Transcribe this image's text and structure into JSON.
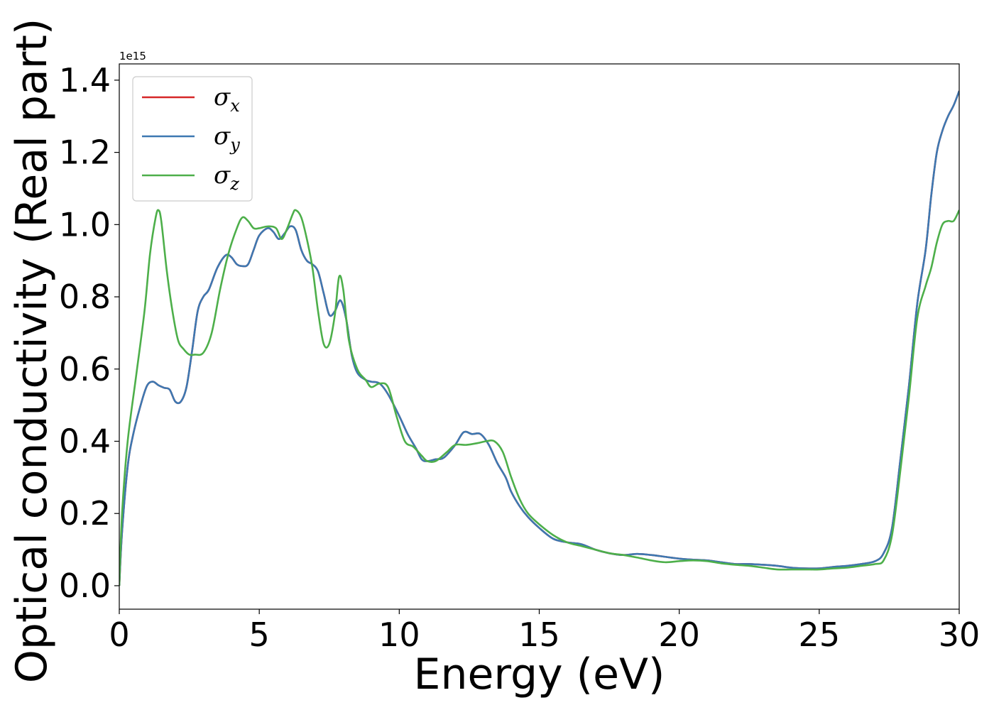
{
  "chart_data": {
    "type": "line",
    "xlabel": "Energy (eV)",
    "ylabel": "Optical conductivity (Real part)",
    "y_offset_label": "1e15",
    "xlim": [
      0,
      30
    ],
    "ylim": [
      -0.065,
      1.445
    ],
    "x_ticks": [
      0,
      5,
      10,
      15,
      20,
      25,
      30
    ],
    "x_tick_labels": [
      "0",
      "5",
      "10",
      "15",
      "20",
      "25",
      "30"
    ],
    "y_ticks": [
      0.0,
      0.2,
      0.4,
      0.6,
      0.8,
      1.0,
      1.2,
      1.4
    ],
    "y_tick_labels": [
      "0.0",
      "0.2",
      "0.4",
      "0.6",
      "0.8",
      "1.0",
      "1.2",
      "1.4"
    ],
    "grid": false,
    "legend": "upper-left",
    "series": [
      {
        "name": "σ",
        "subscript": "x",
        "color": "#d62728",
        "x": [
          0,
          0.1,
          0.3,
          0.5,
          0.8,
          1.0,
          1.2,
          1.4,
          1.6,
          1.8,
          2.0,
          2.2,
          2.4,
          2.6,
          2.8,
          3.0,
          3.2,
          3.5,
          3.8,
          4.0,
          4.2,
          4.4,
          4.6,
          4.8,
          5.0,
          5.3,
          5.5,
          5.7,
          5.9,
          6.1,
          6.3,
          6.5,
          6.7,
          6.9,
          7.1,
          7.3,
          7.5,
          7.7,
          7.9,
          8.1,
          8.3,
          8.5,
          8.8,
          9.0,
          9.3,
          9.6,
          10.0,
          10.3,
          10.6,
          10.8,
          11.0,
          11.3,
          11.6,
          12.0,
          12.3,
          12.6,
          12.9,
          13.2,
          13.5,
          13.8,
          14.0,
          14.3,
          14.6,
          15.0,
          15.5,
          16.0,
          16.5,
          17.0,
          17.5,
          18.0,
          18.5,
          19.0,
          19.5,
          20.0,
          20.5,
          21.0,
          21.5,
          22.0,
          22.5,
          23.0,
          23.5,
          24.0,
          24.5,
          25.0,
          25.5,
          26.0,
          26.5,
          27.0,
          27.3,
          27.6,
          27.9,
          28.2,
          28.5,
          28.8,
          29.0,
          29.2,
          29.4,
          29.6,
          29.8,
          30.0
        ],
        "y": [
          0.0,
          0.15,
          0.33,
          0.42,
          0.51,
          0.555,
          0.565,
          0.555,
          0.548,
          0.543,
          0.51,
          0.51,
          0.55,
          0.65,
          0.76,
          0.8,
          0.82,
          0.88,
          0.915,
          0.91,
          0.89,
          0.885,
          0.89,
          0.93,
          0.97,
          0.99,
          0.98,
          0.96,
          0.975,
          0.995,
          0.985,
          0.93,
          0.9,
          0.89,
          0.87,
          0.81,
          0.75,
          0.76,
          0.79,
          0.74,
          0.64,
          0.59,
          0.57,
          0.565,
          0.56,
          0.53,
          0.47,
          0.42,
          0.38,
          0.35,
          0.345,
          0.35,
          0.355,
          0.39,
          0.425,
          0.42,
          0.42,
          0.39,
          0.34,
          0.3,
          0.26,
          0.22,
          0.19,
          0.16,
          0.13,
          0.12,
          0.115,
          0.1,
          0.09,
          0.085,
          0.088,
          0.085,
          0.08,
          0.075,
          0.072,
          0.07,
          0.065,
          0.06,
          0.06,
          0.058,
          0.055,
          0.05,
          0.048,
          0.048,
          0.052,
          0.055,
          0.06,
          0.068,
          0.09,
          0.16,
          0.35,
          0.55,
          0.78,
          0.93,
          1.08,
          1.2,
          1.26,
          1.3,
          1.33,
          1.37
        ]
      },
      {
        "name": "σ",
        "subscript": "y",
        "color": "#3d78b1",
        "x": [
          0,
          0.1,
          0.3,
          0.5,
          0.8,
          1.0,
          1.2,
          1.4,
          1.6,
          1.8,
          2.0,
          2.2,
          2.4,
          2.6,
          2.8,
          3.0,
          3.2,
          3.5,
          3.8,
          4.0,
          4.2,
          4.4,
          4.6,
          4.8,
          5.0,
          5.3,
          5.5,
          5.7,
          5.9,
          6.1,
          6.3,
          6.5,
          6.7,
          6.9,
          7.1,
          7.3,
          7.5,
          7.7,
          7.9,
          8.1,
          8.3,
          8.5,
          8.8,
          9.0,
          9.3,
          9.6,
          10.0,
          10.3,
          10.6,
          10.8,
          11.0,
          11.3,
          11.6,
          12.0,
          12.3,
          12.6,
          12.9,
          13.2,
          13.5,
          13.8,
          14.0,
          14.3,
          14.6,
          15.0,
          15.5,
          16.0,
          16.5,
          17.0,
          17.5,
          18.0,
          18.5,
          19.0,
          19.5,
          20.0,
          20.5,
          21.0,
          21.5,
          22.0,
          22.5,
          23.0,
          23.5,
          24.0,
          24.5,
          25.0,
          25.5,
          26.0,
          26.5,
          27.0,
          27.3,
          27.6,
          27.9,
          28.2,
          28.5,
          28.8,
          29.0,
          29.2,
          29.4,
          29.6,
          29.8,
          30.0
        ],
        "y": [
          0.0,
          0.15,
          0.33,
          0.42,
          0.51,
          0.555,
          0.565,
          0.555,
          0.548,
          0.543,
          0.51,
          0.51,
          0.55,
          0.65,
          0.76,
          0.8,
          0.82,
          0.88,
          0.915,
          0.91,
          0.89,
          0.885,
          0.89,
          0.93,
          0.97,
          0.99,
          0.98,
          0.96,
          0.975,
          0.995,
          0.985,
          0.93,
          0.9,
          0.89,
          0.87,
          0.81,
          0.75,
          0.76,
          0.79,
          0.74,
          0.64,
          0.59,
          0.57,
          0.565,
          0.56,
          0.53,
          0.47,
          0.42,
          0.38,
          0.35,
          0.345,
          0.35,
          0.355,
          0.39,
          0.425,
          0.42,
          0.42,
          0.39,
          0.34,
          0.3,
          0.26,
          0.22,
          0.19,
          0.16,
          0.13,
          0.12,
          0.115,
          0.1,
          0.09,
          0.085,
          0.088,
          0.085,
          0.08,
          0.075,
          0.072,
          0.07,
          0.065,
          0.06,
          0.06,
          0.058,
          0.055,
          0.05,
          0.048,
          0.048,
          0.052,
          0.055,
          0.06,
          0.068,
          0.09,
          0.16,
          0.35,
          0.55,
          0.78,
          0.93,
          1.08,
          1.2,
          1.26,
          1.3,
          1.33,
          1.37
        ]
      },
      {
        "name": "σ",
        "subscript": "z",
        "color": "#4daf4a",
        "x": [
          0,
          0.1,
          0.3,
          0.6,
          0.9,
          1.1,
          1.3,
          1.4,
          1.5,
          1.7,
          1.9,
          2.1,
          2.3,
          2.5,
          2.7,
          3.0,
          3.3,
          3.6,
          3.9,
          4.2,
          4.4,
          4.6,
          4.8,
          5.0,
          5.3,
          5.6,
          5.8,
          6.0,
          6.2,
          6.3,
          6.5,
          6.7,
          6.9,
          7.1,
          7.3,
          7.5,
          7.7,
          7.85,
          8.0,
          8.2,
          8.5,
          8.8,
          9.0,
          9.3,
          9.6,
          9.9,
          10.2,
          10.5,
          10.8,
          11.0,
          11.3,
          11.7,
          12.0,
          12.4,
          12.8,
          13.1,
          13.4,
          13.7,
          14.0,
          14.3,
          14.6,
          15.0,
          15.5,
          16.0,
          16.5,
          17.0,
          17.5,
          18.0,
          18.5,
          19.0,
          19.5,
          20.0,
          20.5,
          21.0,
          21.5,
          22.0,
          22.5,
          23.0,
          23.5,
          24.0,
          24.5,
          25.0,
          25.5,
          26.0,
          26.5,
          27.0,
          27.3,
          27.6,
          27.9,
          28.2,
          28.5,
          28.8,
          29.0,
          29.2,
          29.4,
          29.6,
          29.8,
          30.0
        ],
        "y": [
          0.0,
          0.2,
          0.4,
          0.58,
          0.76,
          0.92,
          1.02,
          1.04,
          1.01,
          0.87,
          0.76,
          0.68,
          0.655,
          0.64,
          0.64,
          0.645,
          0.7,
          0.82,
          0.92,
          0.99,
          1.02,
          1.01,
          0.99,
          0.99,
          0.995,
          0.99,
          0.96,
          0.99,
          1.03,
          1.04,
          1.02,
          0.96,
          0.88,
          0.76,
          0.67,
          0.67,
          0.75,
          0.855,
          0.82,
          0.68,
          0.6,
          0.57,
          0.55,
          0.56,
          0.55,
          0.47,
          0.4,
          0.385,
          0.36,
          0.345,
          0.345,
          0.37,
          0.39,
          0.39,
          0.395,
          0.4,
          0.4,
          0.37,
          0.3,
          0.24,
          0.2,
          0.17,
          0.14,
          0.12,
          0.11,
          0.1,
          0.09,
          0.085,
          0.078,
          0.07,
          0.065,
          0.068,
          0.07,
          0.068,
          0.062,
          0.058,
          0.055,
          0.05,
          0.045,
          0.045,
          0.045,
          0.045,
          0.048,
          0.05,
          0.055,
          0.06,
          0.07,
          0.14,
          0.32,
          0.52,
          0.74,
          0.83,
          0.88,
          0.95,
          1.0,
          1.01,
          1.01,
          1.04
        ]
      }
    ]
  }
}
